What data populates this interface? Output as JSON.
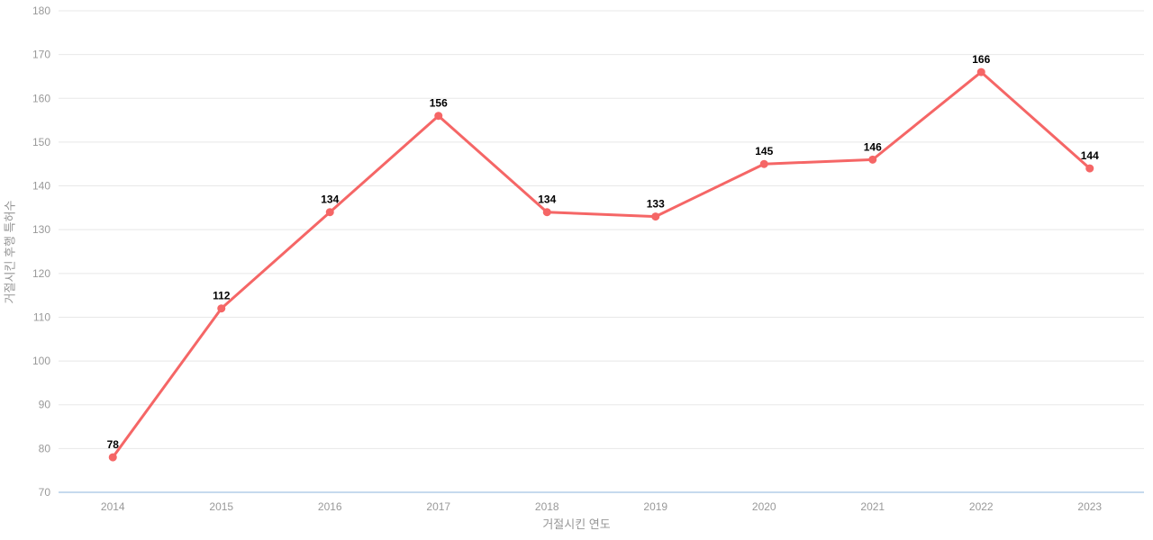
{
  "chart_data": {
    "type": "line",
    "categories": [
      "2014",
      "2015",
      "2016",
      "2017",
      "2018",
      "2019",
      "2020",
      "2021",
      "2022",
      "2023"
    ],
    "series": [
      {
        "name": "거절시킨 후행 특허수",
        "values": [
          78,
          112,
          134,
          156,
          134,
          133,
          145,
          146,
          166,
          144
        ]
      }
    ],
    "title": "",
    "xlabel": "거절시킨 연도",
    "ylabel": "거절시킨 후행 특허수",
    "ylim": [
      70,
      180
    ],
    "ytick_step": 10,
    "yticks": [
      70,
      80,
      90,
      100,
      110,
      120,
      130,
      140,
      150,
      160,
      170,
      180
    ],
    "grid": true,
    "legend_position": "none",
    "data_labels_shown": true,
    "colors": {
      "line": "#f56666",
      "marker": "#f56666",
      "grid": "#e8e8e8",
      "x_axis_line": "#b3cde8",
      "tick_text": "#999999",
      "axis_title_text": "#969696",
      "data_label_text": "#000000",
      "background": "#ffffff"
    }
  }
}
